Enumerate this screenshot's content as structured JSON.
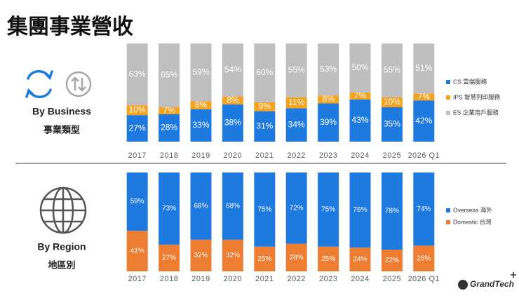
{
  "header": {
    "title": "集團事業營收"
  },
  "sections": [
    {
      "label": "By Business",
      "sublabel": "事業類型"
    },
    {
      "label": "By Region",
      "sublabel": "地區別"
    }
  ],
  "logo": {
    "text": "GrandTech"
  },
  "chart_data": [
    {
      "type": "stacked_bar",
      "categories": [
        "2017",
        "2018",
        "2019",
        "2020",
        "2021",
        "2022",
        "2023",
        "2024",
        "2025",
        "2026 Q1"
      ],
      "ylim": [
        0,
        100
      ],
      "series": [
        {
          "name": "CS 雲端服務",
          "color": "#1f7ae0",
          "values": [
            27,
            28,
            33,
            38,
            31,
            34,
            39,
            43,
            35,
            42
          ],
          "value_labels": [
            "27%",
            "28%",
            "33%",
            "38%",
            "31%",
            "34%",
            "39%",
            "43%",
            "35%",
            "42%"
          ]
        },
        {
          "name": "IPS 智慧列印服務",
          "color": "#f5a21c",
          "values": [
            10,
            7,
            8,
            8,
            9,
            11,
            8,
            7,
            10,
            7
          ],
          "value_labels": [
            "10%",
            "7%",
            "8%",
            "8%",
            "9%",
            "11%",
            "8%",
            "7%",
            "10%",
            "7%"
          ]
        },
        {
          "name": "ES 企業用戶服務",
          "color": "#bfbfbf",
          "values": [
            63,
            65,
            59,
            54,
            60,
            55,
            53,
            50,
            55,
            51
          ],
          "value_labels": [
            "63%",
            "65%",
            "59%",
            "54%",
            "60%",
            "55%",
            "53%",
            "50%",
            "55%",
            "51%"
          ]
        }
      ]
    },
    {
      "type": "stacked_bar",
      "categories": [
        "2017",
        "2018",
        "2019",
        "2020",
        "2021",
        "2022",
        "2023",
        "2024",
        "2025",
        "2026 Q1"
      ],
      "ylim": [
        0,
        100
      ],
      "stack_reverse": true,
      "series": [
        {
          "name": "Overseas 海外",
          "color": "#1f7ae0",
          "values": [
            59,
            73,
            68,
            68,
            75,
            72,
            75,
            76,
            78,
            74
          ],
          "value_labels": [
            "59%",
            "73%",
            "68%",
            "68%",
            "75%",
            "72%",
            "75%",
            "76%",
            "78%",
            "74%"
          ]
        },
        {
          "name": "Domestic 台灣",
          "color": "#ed7d31",
          "values": [
            41,
            27,
            32,
            32,
            25,
            28,
            25,
            24,
            22,
            26
          ],
          "value_labels": [
            "41%",
            "27%",
            "32%",
            "32%",
            "25%",
            "28%",
            "25%",
            "24%",
            "22%",
            "26%"
          ]
        }
      ]
    }
  ]
}
